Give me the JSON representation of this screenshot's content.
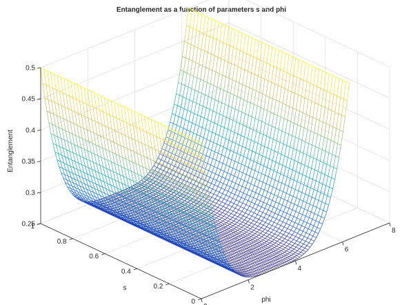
{
  "chart_data": {
    "type": "surface",
    "title": "Entanglement as a function of parameters s  and phi",
    "xlabel": "phi",
    "ylabel": "s",
    "zlabel": "Entanglement",
    "xlim": [
      0,
      8
    ],
    "ylim": [
      0,
      1
    ],
    "zlim": [
      0.25,
      0.5
    ],
    "x_ticks": [
      "0",
      "2",
      "4",
      "6",
      "8"
    ],
    "y_ticks": [
      "0",
      "0.2",
      "0.4",
      "0.6",
      "0.8",
      "1"
    ],
    "z_ticks": [
      "0.25",
      "0.3",
      "0.35",
      "0.4",
      "0.45",
      "0.5"
    ],
    "x_range": [
      0,
      6.2832
    ],
    "y_range": [
      0,
      1
    ],
    "z_min": 0.25,
    "z_max": 0.5,
    "grid": true,
    "colormap": "parula",
    "colormap_colors": [
      "#352a87",
      "#0f5cdd",
      "#1481d6",
      "#06a4ca",
      "#2eb7a4",
      "#87bf77",
      "#d1bb59",
      "#fec832",
      "#f9fb0e"
    ]
  }
}
